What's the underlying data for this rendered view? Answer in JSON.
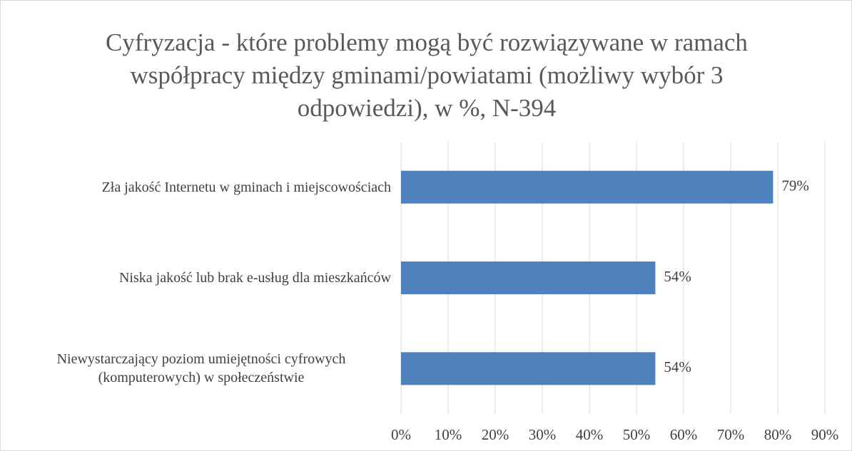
{
  "chart_data": {
    "type": "bar",
    "orientation": "horizontal",
    "title": "Cyfryzacja - które problemy mogą być rozwiązywane w ramach współpracy między gminami/powiatami (możliwy wybór 3 odpowiedzi), w %, N-394",
    "categories": [
      "Zła jakość Internetu w gminach i miejscowościach",
      "Niska jakość lub brak e-usług dla mieszkańców",
      "Niewystarczający poziom umiejętności cyfrowych (komputerowych) w społeczeństwie"
    ],
    "values": [
      79,
      54,
      54
    ],
    "value_labels": [
      "79%",
      "54%",
      "54%"
    ],
    "color": "#4f81bd",
    "xlim": [
      0,
      90
    ],
    "xticks": [
      {
        "value": 0,
        "label": "0%"
      },
      {
        "value": 10,
        "label": "10%"
      },
      {
        "value": 20,
        "label": "20%"
      },
      {
        "value": 30,
        "label": "30%"
      },
      {
        "value": 40,
        "label": "40%"
      },
      {
        "value": 50,
        "label": "50%"
      },
      {
        "value": 60,
        "label": "60%"
      },
      {
        "value": 70,
        "label": "70%"
      },
      {
        "value": 80,
        "label": "80%"
      },
      {
        "value": 90,
        "label": "90%"
      }
    ],
    "grid": true
  }
}
